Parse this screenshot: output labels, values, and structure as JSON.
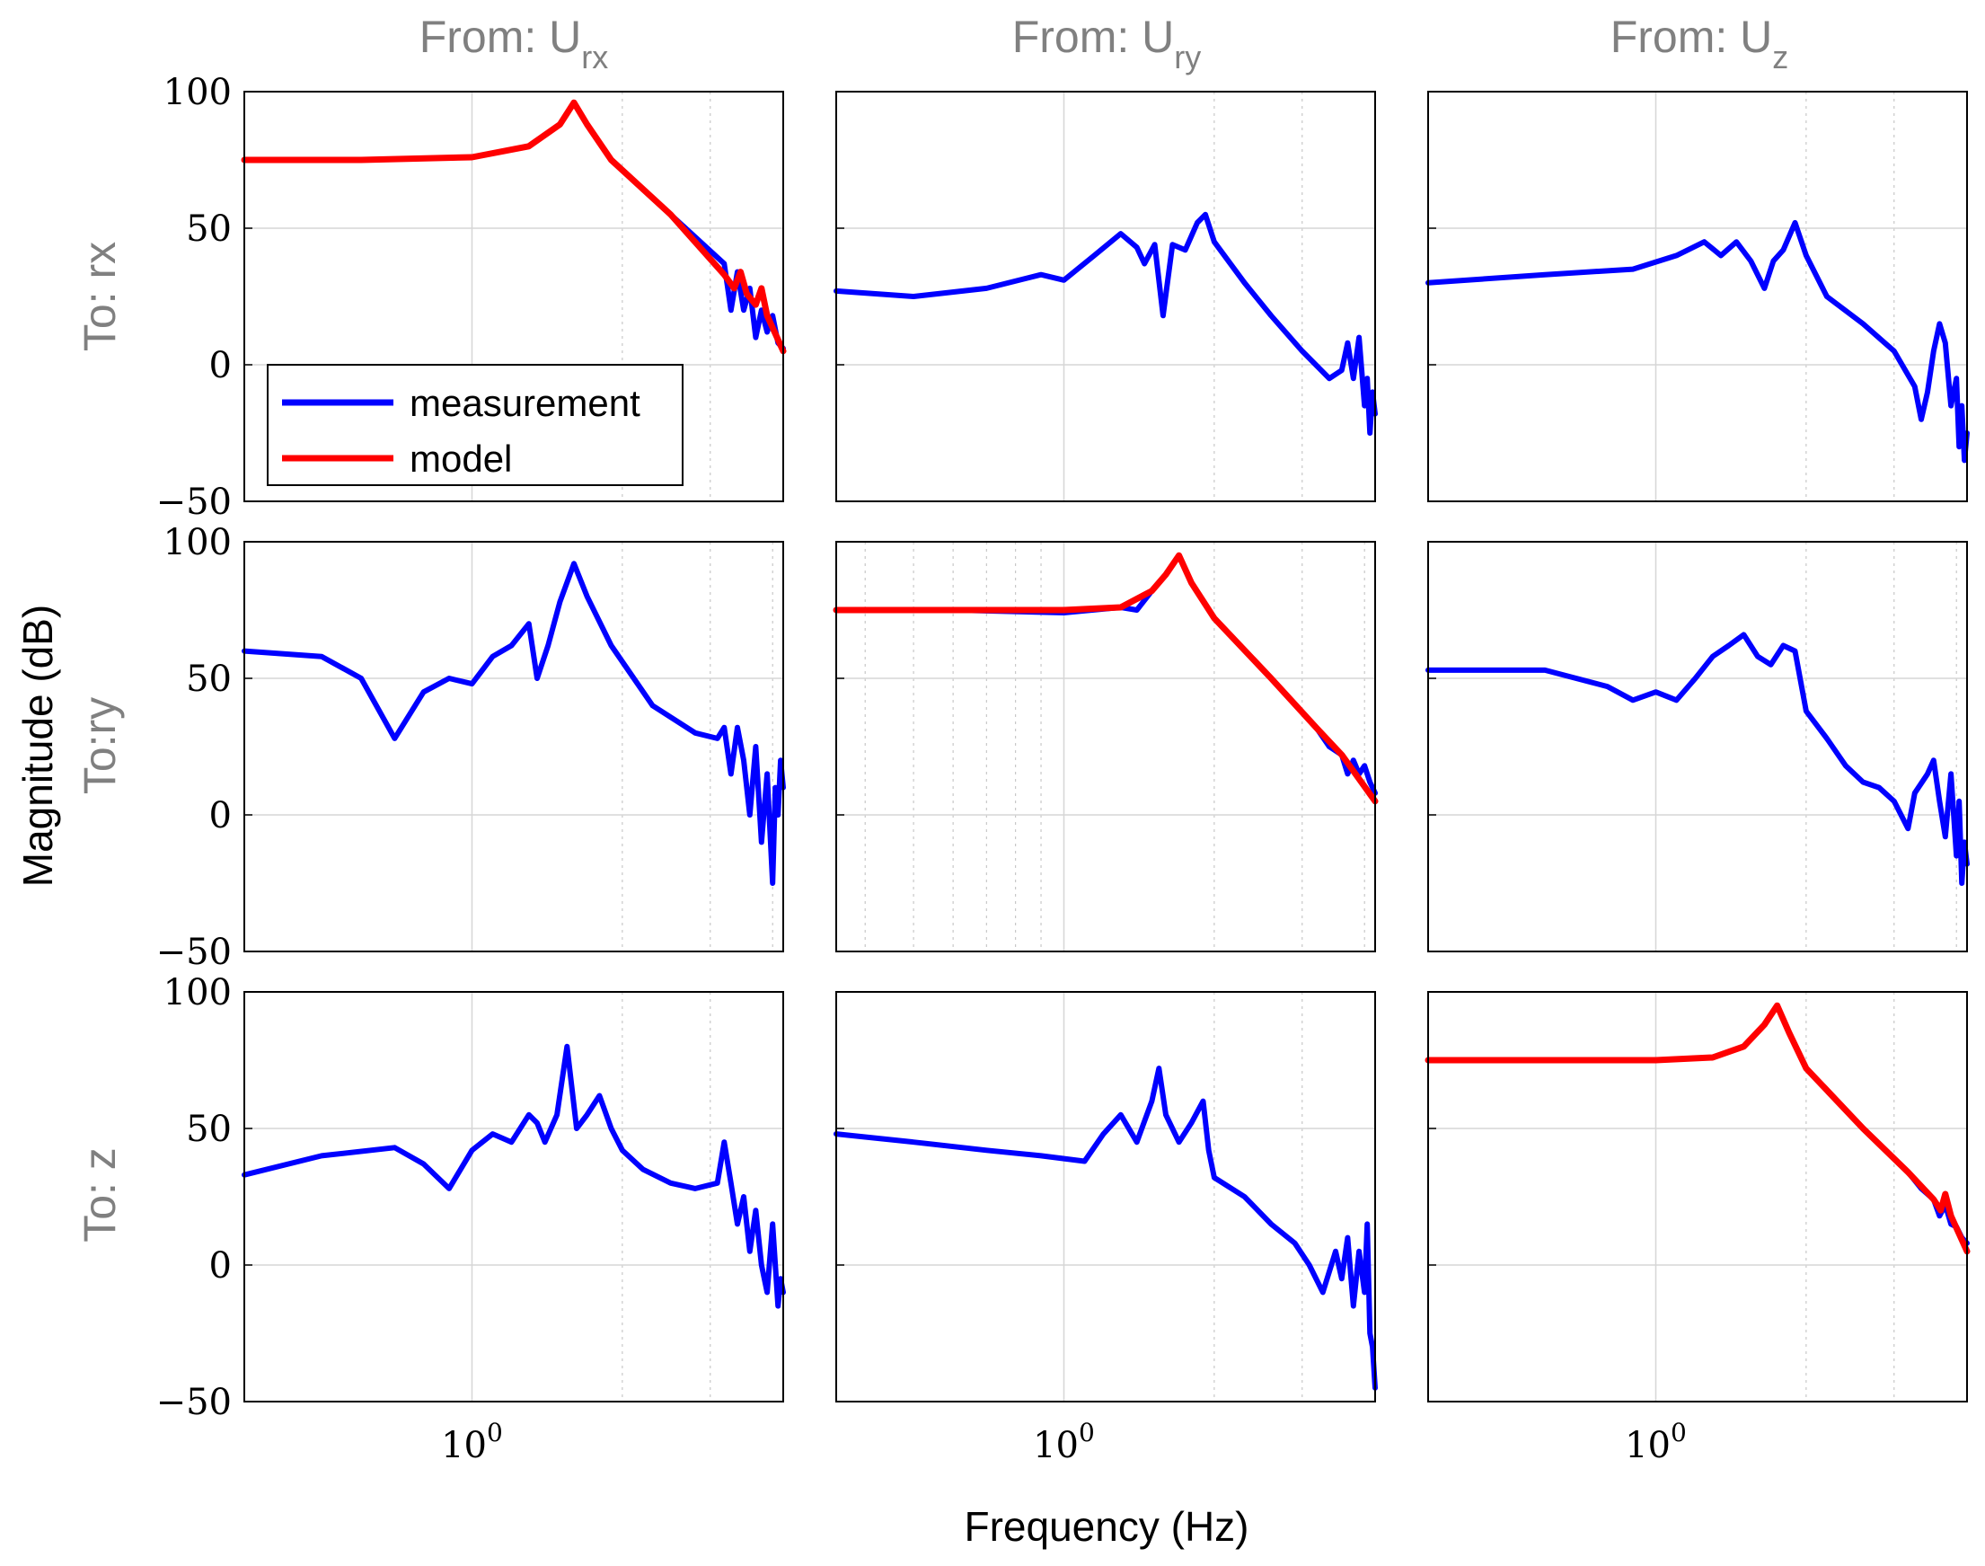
{
  "chart_data": {
    "type": "line",
    "figure": "bode-magnitude-matrix",
    "xscale": "log",
    "xlim": [
      0.35,
      4.2
    ],
    "ylim": [
      -50,
      100
    ],
    "yticks": [
      100,
      50,
      0,
      -50
    ],
    "ytick_labels": [
      "100",
      "50",
      "0",
      "−50"
    ],
    "xtick_label": {
      "base": "10",
      "exp": "0"
    },
    "xlabel": "Frequency  (Hz)",
    "ylabel": "Magnitude (dB)",
    "columns": [
      {
        "prefix": "From: U",
        "sub": "rx"
      },
      {
        "prefix": "From: U",
        "sub": "ry"
      },
      {
        "prefix": "From: U",
        "sub": "z"
      }
    ],
    "rows": [
      "To: rx",
      "To:ry",
      "To: z"
    ],
    "legend": {
      "location": "bottom-left of top-left panel",
      "entries": [
        "measurement",
        "model"
      ]
    },
    "series_colors": {
      "measurement": "#0000ff",
      "model": "#ff0000"
    },
    "panels": [
      {
        "row": 0,
        "col": 0,
        "measurement": [
          [
            0.35,
            75
          ],
          [
            0.6,
            75
          ],
          [
            1.0,
            76
          ],
          [
            1.3,
            80
          ],
          [
            1.5,
            88
          ],
          [
            1.6,
            96
          ],
          [
            1.7,
            88
          ],
          [
            1.9,
            75
          ],
          [
            2.5,
            55
          ],
          [
            3.2,
            37
          ],
          [
            3.3,
            20
          ],
          [
            3.4,
            34
          ],
          [
            3.5,
            20
          ],
          [
            3.6,
            28
          ],
          [
            3.7,
            10
          ],
          [
            3.8,
            20
          ],
          [
            3.9,
            12
          ],
          [
            4.0,
            18
          ],
          [
            4.1,
            8
          ],
          [
            4.2,
            6
          ]
        ],
        "model": [
          [
            0.35,
            75
          ],
          [
            0.6,
            75
          ],
          [
            1.0,
            76
          ],
          [
            1.3,
            80
          ],
          [
            1.5,
            88
          ],
          [
            1.6,
            96
          ],
          [
            1.7,
            88
          ],
          [
            1.9,
            75
          ],
          [
            2.5,
            55
          ],
          [
            3.2,
            33
          ],
          [
            3.35,
            28
          ],
          [
            3.45,
            34
          ],
          [
            3.55,
            26
          ],
          [
            3.7,
            22
          ],
          [
            3.8,
            28
          ],
          [
            3.9,
            18
          ],
          [
            4.2,
            5
          ]
        ]
      },
      {
        "row": 0,
        "col": 1,
        "measurement": [
          [
            0.35,
            27
          ],
          [
            0.5,
            25
          ],
          [
            0.7,
            28
          ],
          [
            0.9,
            33
          ],
          [
            1.0,
            31
          ],
          [
            1.15,
            40
          ],
          [
            1.3,
            48
          ],
          [
            1.4,
            43
          ],
          [
            1.45,
            37
          ],
          [
            1.52,
            44
          ],
          [
            1.58,
            18
          ],
          [
            1.65,
            44
          ],
          [
            1.75,
            42
          ],
          [
            1.85,
            52
          ],
          [
            1.92,
            55
          ],
          [
            2.0,
            45
          ],
          [
            2.3,
            30
          ],
          [
            2.6,
            18
          ],
          [
            3.0,
            5
          ],
          [
            3.4,
            -5
          ],
          [
            3.6,
            -2
          ],
          [
            3.7,
            8
          ],
          [
            3.8,
            -5
          ],
          [
            3.9,
            10
          ],
          [
            4.0,
            -15
          ],
          [
            4.05,
            -5
          ],
          [
            4.1,
            -25
          ],
          [
            4.15,
            -10
          ],
          [
            4.2,
            -18
          ]
        ]
      },
      {
        "row": 0,
        "col": 2,
        "measurement": [
          [
            0.35,
            30
          ],
          [
            0.6,
            33
          ],
          [
            0.9,
            35
          ],
          [
            1.1,
            40
          ],
          [
            1.25,
            45
          ],
          [
            1.35,
            40
          ],
          [
            1.45,
            45
          ],
          [
            1.55,
            38
          ],
          [
            1.65,
            28
          ],
          [
            1.72,
            38
          ],
          [
            1.8,
            42
          ],
          [
            1.9,
            52
          ],
          [
            2.0,
            40
          ],
          [
            2.2,
            25
          ],
          [
            2.6,
            15
          ],
          [
            3.0,
            5
          ],
          [
            3.3,
            -8
          ],
          [
            3.4,
            -20
          ],
          [
            3.5,
            -10
          ],
          [
            3.6,
            5
          ],
          [
            3.7,
            15
          ],
          [
            3.8,
            8
          ],
          [
            3.9,
            -15
          ],
          [
            4.0,
            -5
          ],
          [
            4.05,
            -30
          ],
          [
            4.1,
            -15
          ],
          [
            4.15,
            -35
          ],
          [
            4.2,
            -25
          ]
        ]
      },
      {
        "row": 1,
        "col": 0,
        "measurement": [
          [
            0.35,
            60
          ],
          [
            0.5,
            58
          ],
          [
            0.6,
            50
          ],
          [
            0.7,
            28
          ],
          [
            0.8,
            45
          ],
          [
            0.9,
            50
          ],
          [
            1.0,
            48
          ],
          [
            1.1,
            58
          ],
          [
            1.2,
            62
          ],
          [
            1.3,
            70
          ],
          [
            1.35,
            50
          ],
          [
            1.42,
            62
          ],
          [
            1.5,
            78
          ],
          [
            1.6,
            92
          ],
          [
            1.7,
            80
          ],
          [
            1.9,
            62
          ],
          [
            2.3,
            40
          ],
          [
            2.8,
            30
          ],
          [
            3.1,
            28
          ],
          [
            3.2,
            32
          ],
          [
            3.3,
            15
          ],
          [
            3.4,
            32
          ],
          [
            3.5,
            20
          ],
          [
            3.6,
            0
          ],
          [
            3.7,
            25
          ],
          [
            3.8,
            -10
          ],
          [
            3.9,
            15
          ],
          [
            4.0,
            -25
          ],
          [
            4.05,
            10
          ],
          [
            4.1,
            0
          ],
          [
            4.15,
            20
          ],
          [
            4.2,
            10
          ]
        ]
      },
      {
        "row": 1,
        "col": 1,
        "measurement": [
          [
            0.35,
            75
          ],
          [
            0.6,
            75
          ],
          [
            1.0,
            74
          ],
          [
            1.3,
            76
          ],
          [
            1.4,
            75
          ],
          [
            1.5,
            82
          ],
          [
            1.6,
            88
          ],
          [
            1.7,
            95
          ],
          [
            1.8,
            85
          ],
          [
            2.0,
            72
          ],
          [
            2.6,
            50
          ],
          [
            3.2,
            32
          ],
          [
            3.4,
            25
          ],
          [
            3.6,
            22
          ],
          [
            3.7,
            15
          ],
          [
            3.8,
            20
          ],
          [
            3.9,
            15
          ],
          [
            4.0,
            18
          ],
          [
            4.1,
            12
          ],
          [
            4.2,
            8
          ]
        ],
        "model": [
          [
            0.35,
            75
          ],
          [
            0.6,
            75
          ],
          [
            1.0,
            75
          ],
          [
            1.3,
            76
          ],
          [
            1.5,
            82
          ],
          [
            1.6,
            88
          ],
          [
            1.7,
            95
          ],
          [
            1.8,
            85
          ],
          [
            2.0,
            72
          ],
          [
            2.6,
            50
          ],
          [
            3.2,
            32
          ],
          [
            3.6,
            22
          ],
          [
            4.2,
            5
          ]
        ]
      },
      {
        "row": 1,
        "col": 2,
        "measurement": [
          [
            0.35,
            53
          ],
          [
            0.6,
            53
          ],
          [
            0.8,
            47
          ],
          [
            0.9,
            42
          ],
          [
            1.0,
            45
          ],
          [
            1.1,
            42
          ],
          [
            1.2,
            50
          ],
          [
            1.3,
            58
          ],
          [
            1.4,
            62
          ],
          [
            1.5,
            66
          ],
          [
            1.6,
            58
          ],
          [
            1.7,
            55
          ],
          [
            1.8,
            62
          ],
          [
            1.9,
            60
          ],
          [
            2.0,
            38
          ],
          [
            2.2,
            28
          ],
          [
            2.4,
            18
          ],
          [
            2.6,
            12
          ],
          [
            2.8,
            10
          ],
          [
            3.0,
            5
          ],
          [
            3.2,
            -5
          ],
          [
            3.3,
            8
          ],
          [
            3.5,
            15
          ],
          [
            3.6,
            20
          ],
          [
            3.7,
            5
          ],
          [
            3.8,
            -8
          ],
          [
            3.9,
            15
          ],
          [
            4.0,
            -15
          ],
          [
            4.05,
            5
          ],
          [
            4.1,
            -25
          ],
          [
            4.15,
            -10
          ],
          [
            4.2,
            -18
          ]
        ]
      },
      {
        "row": 2,
        "col": 0,
        "measurement": [
          [
            0.35,
            33
          ],
          [
            0.5,
            40
          ],
          [
            0.7,
            43
          ],
          [
            0.8,
            37
          ],
          [
            0.9,
            28
          ],
          [
            1.0,
            42
          ],
          [
            1.1,
            48
          ],
          [
            1.2,
            45
          ],
          [
            1.3,
            55
          ],
          [
            1.35,
            52
          ],
          [
            1.4,
            45
          ],
          [
            1.48,
            55
          ],
          [
            1.55,
            80
          ],
          [
            1.62,
            50
          ],
          [
            1.7,
            55
          ],
          [
            1.8,
            62
          ],
          [
            1.9,
            50
          ],
          [
            2.0,
            42
          ],
          [
            2.2,
            35
          ],
          [
            2.5,
            30
          ],
          [
            2.8,
            28
          ],
          [
            3.1,
            30
          ],
          [
            3.2,
            45
          ],
          [
            3.3,
            30
          ],
          [
            3.4,
            15
          ],
          [
            3.5,
            25
          ],
          [
            3.6,
            5
          ],
          [
            3.7,
            20
          ],
          [
            3.8,
            0
          ],
          [
            3.9,
            -10
          ],
          [
            4.0,
            15
          ],
          [
            4.1,
            -15
          ],
          [
            4.15,
            -5
          ],
          [
            4.2,
            -10
          ]
        ]
      },
      {
        "row": 2,
        "col": 1,
        "measurement": [
          [
            0.35,
            48
          ],
          [
            0.5,
            45
          ],
          [
            0.7,
            42
          ],
          [
            0.9,
            40
          ],
          [
            1.1,
            38
          ],
          [
            1.2,
            48
          ],
          [
            1.3,
            55
          ],
          [
            1.4,
            45
          ],
          [
            1.5,
            60
          ],
          [
            1.55,
            72
          ],
          [
            1.6,
            55
          ],
          [
            1.7,
            45
          ],
          [
            1.8,
            52
          ],
          [
            1.9,
            60
          ],
          [
            1.95,
            42
          ],
          [
            2.0,
            32
          ],
          [
            2.3,
            25
          ],
          [
            2.6,
            15
          ],
          [
            2.9,
            8
          ],
          [
            3.1,
            0
          ],
          [
            3.3,
            -10
          ],
          [
            3.5,
            5
          ],
          [
            3.6,
            -5
          ],
          [
            3.7,
            10
          ],
          [
            3.8,
            -15
          ],
          [
            3.9,
            5
          ],
          [
            4.0,
            -10
          ],
          [
            4.05,
            15
          ],
          [
            4.1,
            -25
          ],
          [
            4.15,
            -30
          ],
          [
            4.2,
            -45
          ]
        ]
      },
      {
        "row": 2,
        "col": 2,
        "measurement": [
          [
            0.35,
            75
          ],
          [
            0.6,
            75
          ],
          [
            1.0,
            75
          ],
          [
            1.3,
            76
          ],
          [
            1.5,
            80
          ],
          [
            1.65,
            88
          ],
          [
            1.75,
            95
          ],
          [
            1.85,
            85
          ],
          [
            2.0,
            72
          ],
          [
            2.6,
            50
          ],
          [
            3.2,
            34
          ],
          [
            3.4,
            28
          ],
          [
            3.6,
            24
          ],
          [
            3.7,
            18
          ],
          [
            3.8,
            22
          ],
          [
            3.9,
            15
          ],
          [
            4.0,
            14
          ],
          [
            4.1,
            10
          ],
          [
            4.2,
            8
          ]
        ],
        "model": [
          [
            0.35,
            75
          ],
          [
            0.6,
            75
          ],
          [
            1.0,
            75
          ],
          [
            1.3,
            76
          ],
          [
            1.5,
            80
          ],
          [
            1.65,
            88
          ],
          [
            1.75,
            95
          ],
          [
            1.85,
            85
          ],
          [
            2.0,
            72
          ],
          [
            2.6,
            50
          ],
          [
            3.2,
            34
          ],
          [
            3.6,
            24
          ],
          [
            3.72,
            20
          ],
          [
            3.8,
            26
          ],
          [
            3.9,
            18
          ],
          [
            4.2,
            5
          ]
        ]
      }
    ]
  }
}
